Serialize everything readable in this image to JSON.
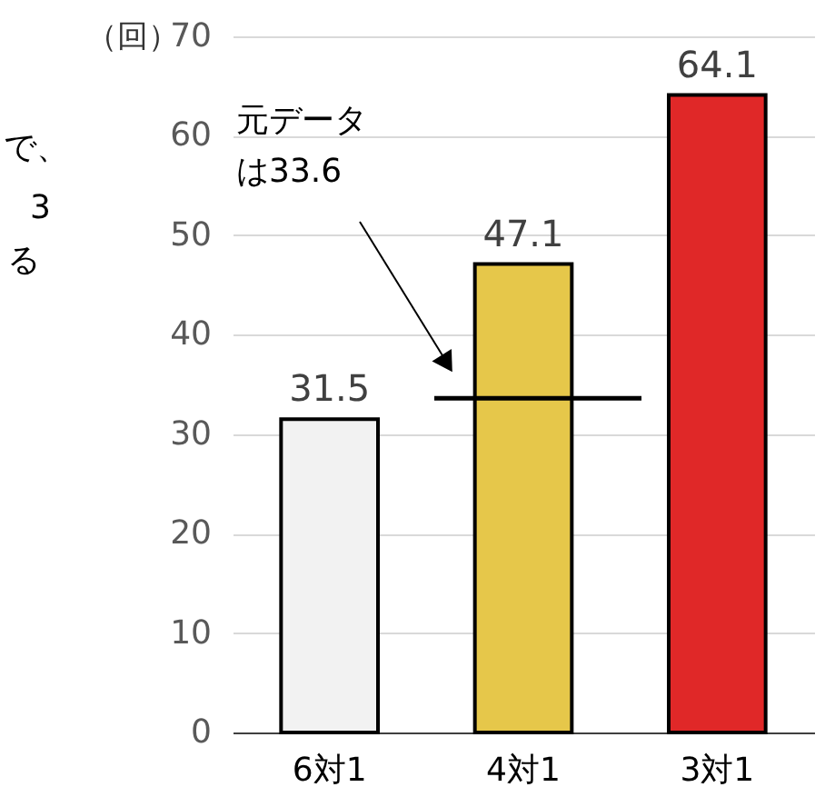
{
  "chart_data": {
    "type": "bar",
    "ylabel": "（回）",
    "categories": [
      "6対1",
      "4対1",
      "3対1"
    ],
    "values": [
      31.5,
      47.1,
      64.1
    ],
    "colors": [
      "#f2f2f2",
      "#e6c74a",
      "#e02828"
    ],
    "ylim": [
      0,
      70
    ],
    "yticks": [
      0,
      10,
      20,
      30,
      40,
      50,
      60,
      70
    ],
    "grid": "y",
    "data_labels": true,
    "ref_lines": [
      {
        "axis": "y",
        "value": 33.6,
        "label": "元データは33.6",
        "color": "#000000",
        "line_style": "solid"
      }
    ],
    "annotations": [
      "で、",
      "3",
      "る"
    ]
  }
}
